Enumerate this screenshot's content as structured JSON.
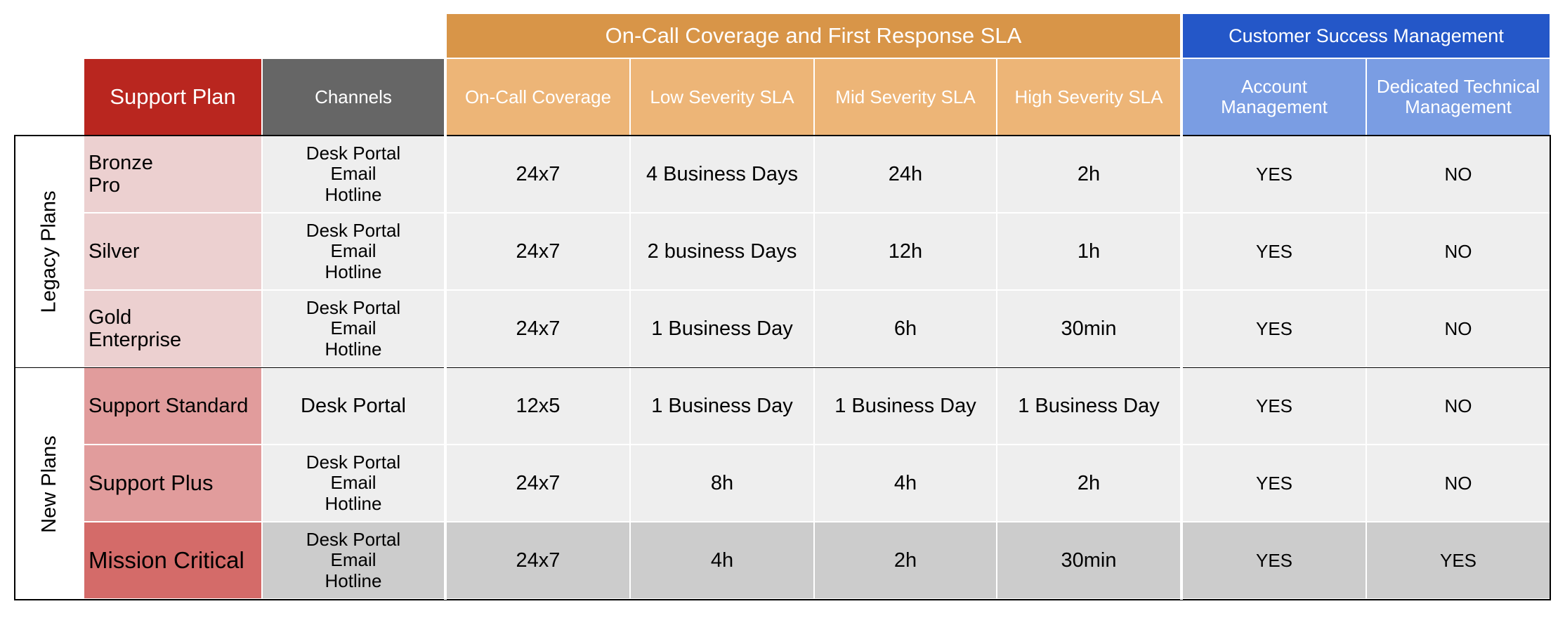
{
  "group_headers": {
    "oncall": "On-Call Coverage and First Response SLA",
    "csm": "Customer Success Management"
  },
  "col_headers": {
    "plan": "Support Plan",
    "channels": "Channels",
    "coverage": "On-Call Coverage",
    "low": "Low Severity SLA",
    "mid": "Mid Severity SLA",
    "high": "High Severity SLA",
    "account_l1": "Account",
    "account_l2": "Management",
    "dtm_l1": "Dedicated Technical",
    "dtm_l2": "Management"
  },
  "sections": {
    "legacy": "Legacy Plans",
    "new": "New Plans"
  },
  "rows": [
    {
      "plan_l1": "Bronze",
      "plan_l2": "Pro",
      "ch1": "Desk Portal",
      "ch2": "Email",
      "ch3": "Hotline",
      "coverage": "24x7",
      "low": "4 Business Days",
      "mid": "24h",
      "high": "2h",
      "am": "YES",
      "dtm": "NO"
    },
    {
      "plan_l1": "Silver",
      "plan_l2": "",
      "ch1": "Desk Portal",
      "ch2": "Email",
      "ch3": "Hotline",
      "coverage": "24x7",
      "low": "2 business Days",
      "mid": "12h",
      "high": "1h",
      "am": "YES",
      "dtm": "NO"
    },
    {
      "plan_l1": "Gold",
      "plan_l2": "Enterprise",
      "ch1": "Desk Portal",
      "ch2": "Email",
      "ch3": "Hotline",
      "coverage": "24x7",
      "low": "1 Business Day",
      "mid": "6h",
      "high": "30min",
      "am": "YES",
      "dtm": "NO"
    },
    {
      "plan_l1": "Support Standard",
      "plan_l2": "",
      "ch1": "Desk Portal",
      "ch2": "",
      "ch3": "",
      "coverage": "12x5",
      "low": "1 Business Day",
      "mid": "1 Business Day",
      "high": "1 Business Day",
      "am": "YES",
      "dtm": "NO"
    },
    {
      "plan_l1": "Support Plus",
      "plan_l2": "",
      "ch1": "Desk Portal",
      "ch2": "Email",
      "ch3": "Hotline",
      "coverage": "24x7",
      "low": "8h",
      "mid": "4h",
      "high": "2h",
      "am": "YES",
      "dtm": "NO"
    },
    {
      "plan_l1": "Mission Critical",
      "plan_l2": "",
      "ch1": "Desk Portal",
      "ch2": "Email",
      "ch3": "Hotline",
      "coverage": "24x7",
      "low": "4h",
      "mid": "2h",
      "high": "30min",
      "am": "YES",
      "dtm": "YES"
    }
  ],
  "colors": {
    "group_oncall": "#d89548",
    "group_csm": "#2457c8",
    "oncall_header": "#edb577",
    "csm_header": "#7a9de3",
    "plan_header": "#b9261f",
    "channels_header": "#666666",
    "legacy_plan_cell": "#ecd0d0",
    "new_plan_cell": "#e19c9c",
    "mission_plan_cell": "#d46b69",
    "body_cell": "#eeeeee",
    "mission_row_cell": "#cccccc"
  }
}
